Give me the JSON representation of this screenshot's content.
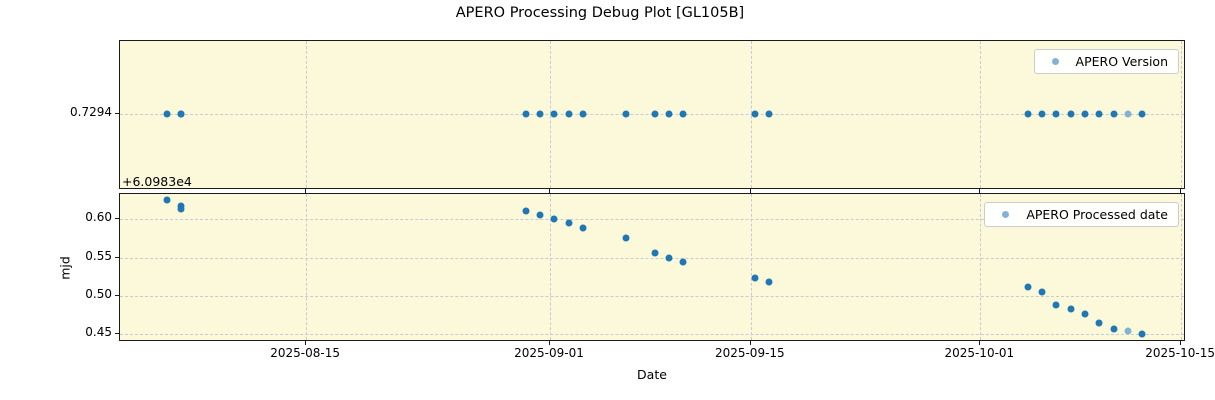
{
  "title": "APERO Processing Debug Plot [GL105B]",
  "xaxis": {
    "label": "Date",
    "tick_labels": [
      "2025-08-15",
      "2025-09-01",
      "2025-09-15",
      "2025-10-01",
      "2025-10-15"
    ]
  },
  "version_plot": {
    "legend": "APERO Version",
    "ytick": "0.7294",
    "offset_text": "+6.0983e4"
  },
  "mjd_plot": {
    "legend": "APERO Processed date",
    "ylabel": "mjd",
    "ytick_labels": [
      "0.60",
      "0.55",
      "0.50",
      "0.45"
    ]
  },
  "colors": {
    "point": "#1f77b4",
    "point_faded": "#85b2d4",
    "plot_bg": "#fcf9db",
    "grid": "#c9c9d4",
    "axes_border": "#1b1b1b",
    "legend_border": "#cccccc"
  },
  "chart_data": [
    {
      "type": "scatter",
      "name": "APERO Version",
      "y_tick_label": "0.7294",
      "y_axis_offset": "+6.0983e4",
      "y_constant": 0.7294,
      "x": [
        "2025-08-05",
        "2025-08-06",
        "2025-08-06",
        "2025-08-30",
        "2025-08-31",
        "2025-09-01",
        "2025-09-02",
        "2025-09-03",
        "2025-09-06",
        "2025-09-08",
        "2025-09-09",
        "2025-09-10",
        "2025-09-15",
        "2025-09-16",
        "2025-10-04",
        "2025-10-05",
        "2025-10-06",
        "2025-10-07",
        "2025-10-08",
        "2025-10-09",
        "2025-10-10",
        "2025-10-11",
        "2025-10-12"
      ],
      "faded_x": [
        "2025-10-11"
      ],
      "legend_position": "upper right"
    },
    {
      "type": "scatter",
      "name": "APERO Processed date",
      "xlabel": "Date",
      "ylabel": "mjd",
      "yticks": [
        0.6,
        0.55,
        0.5,
        0.45
      ],
      "ylim": [
        0.441,
        0.633
      ],
      "xlim": [
        "2025-08-02",
        "2025-10-15"
      ],
      "legend_position": "upper right",
      "points": [
        {
          "date": "2025-08-05",
          "mjd": 0.625
        },
        {
          "date": "2025-08-06",
          "mjd": 0.618
        },
        {
          "date": "2025-08-06",
          "mjd": 0.613
        },
        {
          "date": "2025-08-30",
          "mjd": 0.611
        },
        {
          "date": "2025-08-31",
          "mjd": 0.605
        },
        {
          "date": "2025-09-01",
          "mjd": 0.6
        },
        {
          "date": "2025-09-02",
          "mjd": 0.595
        },
        {
          "date": "2025-09-03",
          "mjd": 0.589
        },
        {
          "date": "2025-09-06",
          "mjd": 0.575
        },
        {
          "date": "2025-09-08",
          "mjd": 0.556
        },
        {
          "date": "2025-09-09",
          "mjd": 0.55
        },
        {
          "date": "2025-09-10",
          "mjd": 0.544
        },
        {
          "date": "2025-09-15",
          "mjd": 0.524
        },
        {
          "date": "2025-09-16",
          "mjd": 0.518
        },
        {
          "date": "2025-10-04",
          "mjd": 0.512
        },
        {
          "date": "2025-10-05",
          "mjd": 0.505
        },
        {
          "date": "2025-10-06",
          "mjd": 0.488
        },
        {
          "date": "2025-10-07",
          "mjd": 0.483
        },
        {
          "date": "2025-10-08",
          "mjd": 0.477
        },
        {
          "date": "2025-10-09",
          "mjd": 0.464
        },
        {
          "date": "2025-10-10",
          "mjd": 0.457
        },
        {
          "date": "2025-10-11",
          "mjd": 0.454,
          "faded": true
        },
        {
          "date": "2025-10-12",
          "mjd": 0.45
        }
      ]
    }
  ]
}
